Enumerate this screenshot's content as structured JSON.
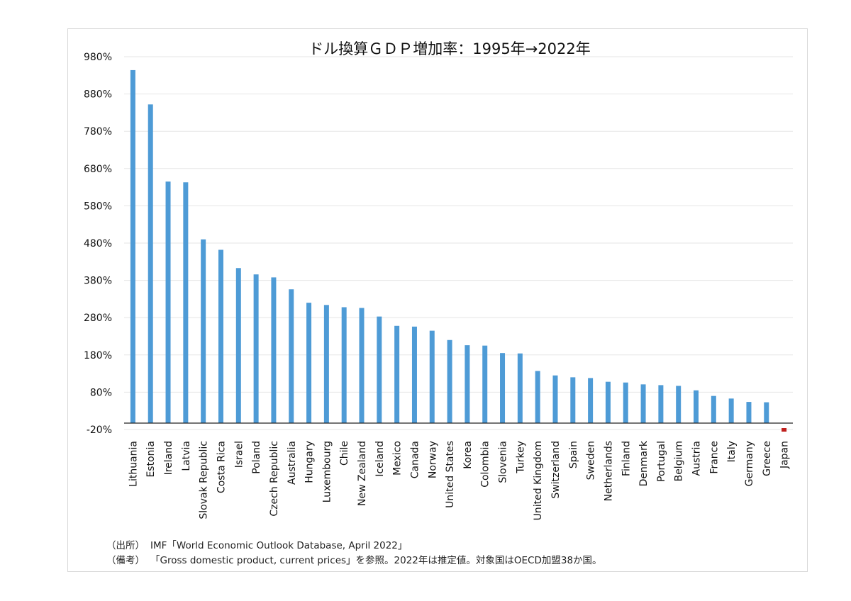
{
  "chart_data": {
    "type": "bar",
    "title": "ドル換算ＧＤＰ増加率：1995年→2022年",
    "xlabel": "",
    "ylabel": "",
    "ylim": [
      -20,
      980
    ],
    "yticks": [
      "980%",
      "880%",
      "780%",
      "680%",
      "580%",
      "480%",
      "380%",
      "280%",
      "180%",
      "80%",
      "-20%"
    ],
    "grid": true,
    "legend": "none",
    "categories": [
      "Lithuania",
      "Estonia",
      "Ireland",
      "Latvia",
      "Slovak Republic",
      "Costa Rica",
      "Israel",
      "Poland",
      "Czech Republic",
      "Australia",
      "Hungary",
      "Luxembourg",
      "Chile",
      "New Zealand",
      "Iceland",
      "Mexico",
      "Canada",
      "Norway",
      "United States",
      "Korea",
      "Colombia",
      "Slovenia",
      "Turkey",
      "United Kingdom",
      "Switzerland",
      "Spain",
      "Sweden",
      "Netherlands",
      "Finland",
      "Denmark",
      "Portugal",
      "Belgium",
      "Austria",
      "France",
      "Italy",
      "Germany",
      "Greece",
      "Japan"
    ],
    "values": [
      944,
      852,
      645,
      643,
      490,
      462,
      413,
      396,
      388,
      356,
      320,
      314,
      308,
      306,
      283,
      258,
      256,
      245,
      220,
      206,
      205,
      185,
      184,
      137,
      125,
      120,
      118,
      108,
      106,
      101,
      99,
      97,
      85,
      70,
      63,
      54,
      53,
      -8
    ],
    "colors": {
      "bar": "#4e9bd6",
      "negative_bar": "#c0201e",
      "grid": "#e6e6e6"
    }
  },
  "notes": {
    "source_key": "（出所）",
    "source_text": "IMF「World Economic Outlook Database, April 2022」",
    "remark_key": "（備考）",
    "remark_text": "「Gross domestic product, current prices」を参照。2022年は推定値。対象国はOECD加盟38か国。"
  }
}
